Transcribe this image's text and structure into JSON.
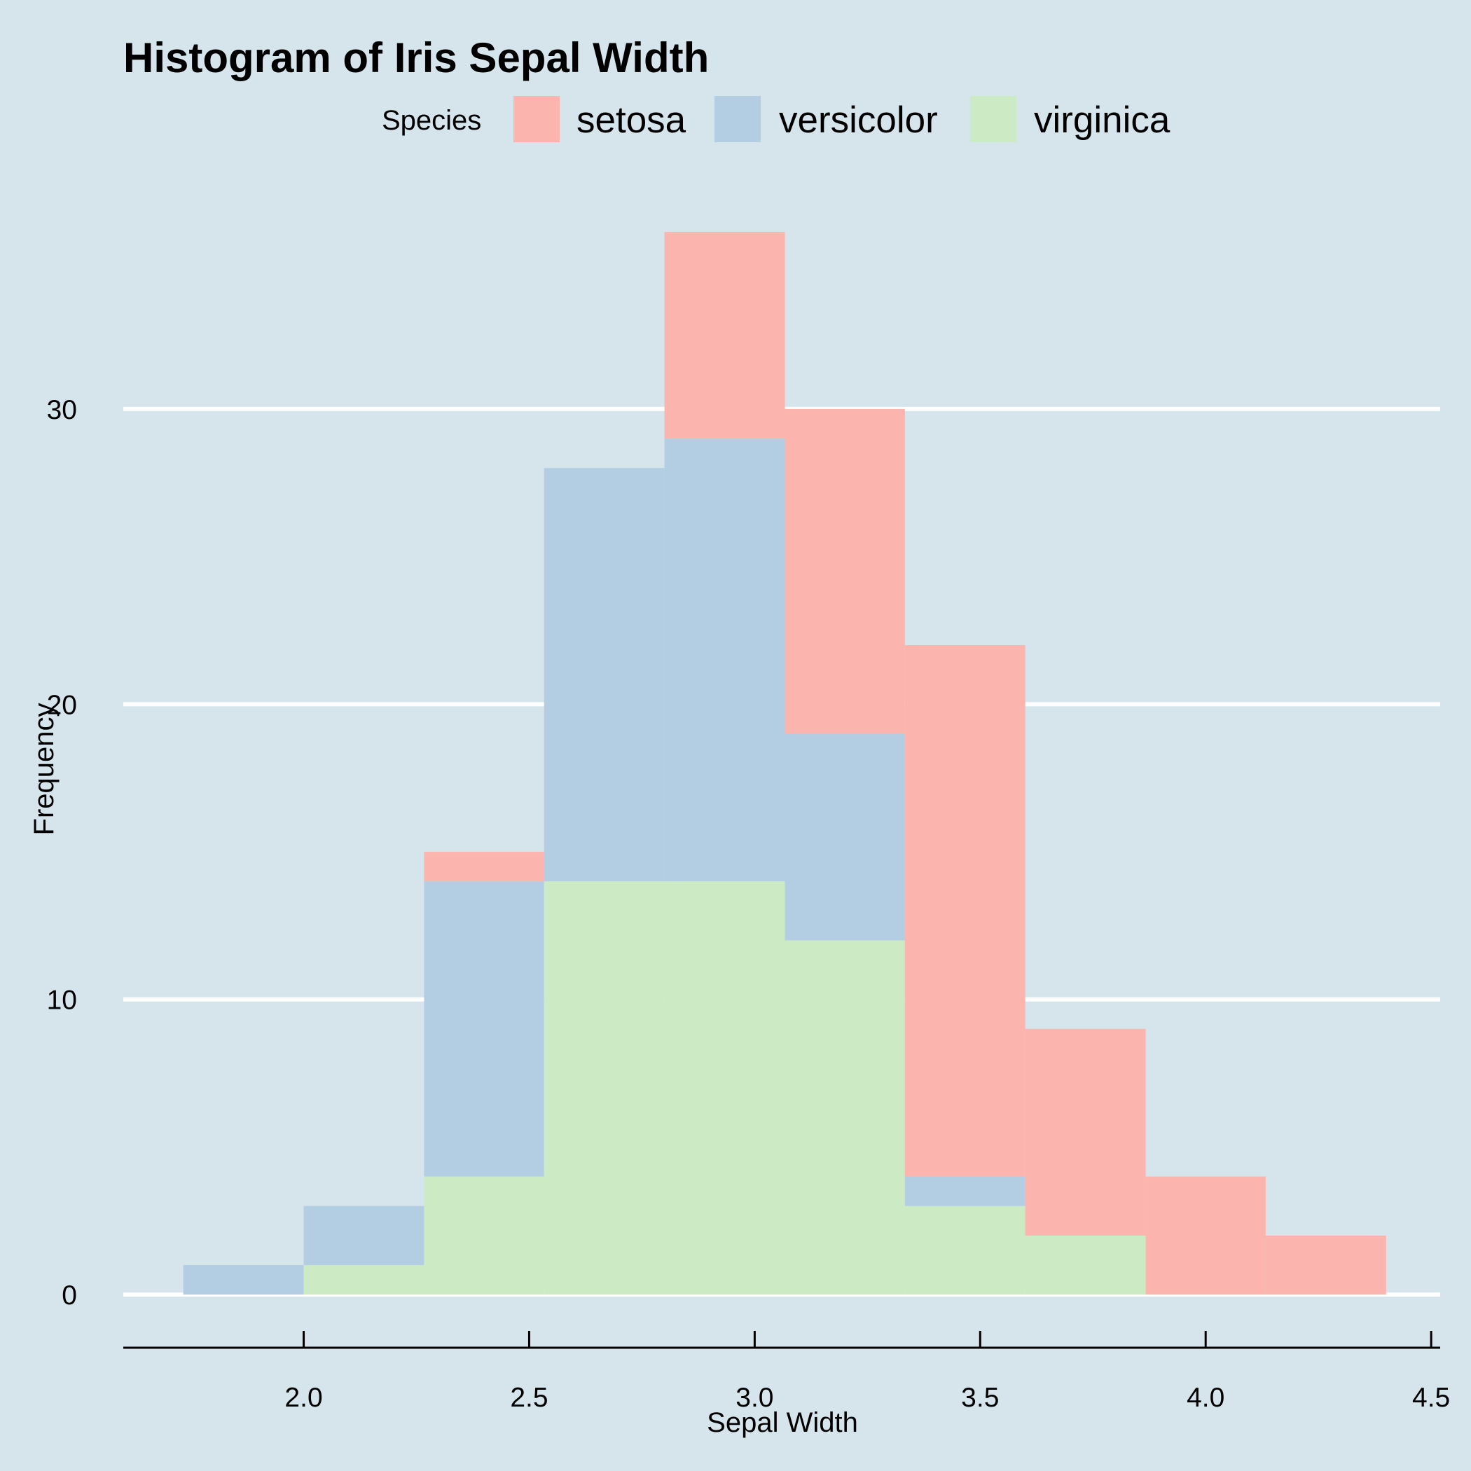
{
  "chart_data": {
    "type": "bar",
    "stacked": true,
    "title": "Histogram of Iris Sepal Width",
    "xlabel": "Sepal Width",
    "ylabel": "Frequency",
    "legend": {
      "title": "Species",
      "placement": "top"
    },
    "bin_edges": [
      1.733,
      2.0,
      2.267,
      2.533,
      2.8,
      3.067,
      3.333,
      3.6,
      3.867,
      4.133,
      4.4
    ],
    "series": [
      {
        "name": "virginica",
        "color": "#ccebc5",
        "values": [
          0,
          1,
          4,
          14,
          14,
          12,
          3,
          2,
          0,
          0
        ]
      },
      {
        "name": "versicolor",
        "color": "#b3cde3",
        "values": [
          1,
          2,
          10,
          14,
          15,
          7,
          1,
          0,
          0,
          0
        ]
      },
      {
        "name": "setosa",
        "color": "#fbb4ae",
        "values": [
          0,
          0,
          1,
          0,
          7,
          11,
          18,
          7,
          4,
          2
        ]
      }
    ],
    "legend_order": [
      "setosa",
      "versicolor",
      "virginica"
    ],
    "xlim": [
      1.6,
      4.52
    ],
    "xticks": [
      "2.0",
      "2.5",
      "3.0",
      "3.5",
      "4.0",
      "4.5"
    ],
    "ylim": [
      -1.8,
      36.5
    ],
    "yticks": [
      "0",
      "10",
      "20",
      "30"
    ],
    "grid": "horizontal"
  }
}
